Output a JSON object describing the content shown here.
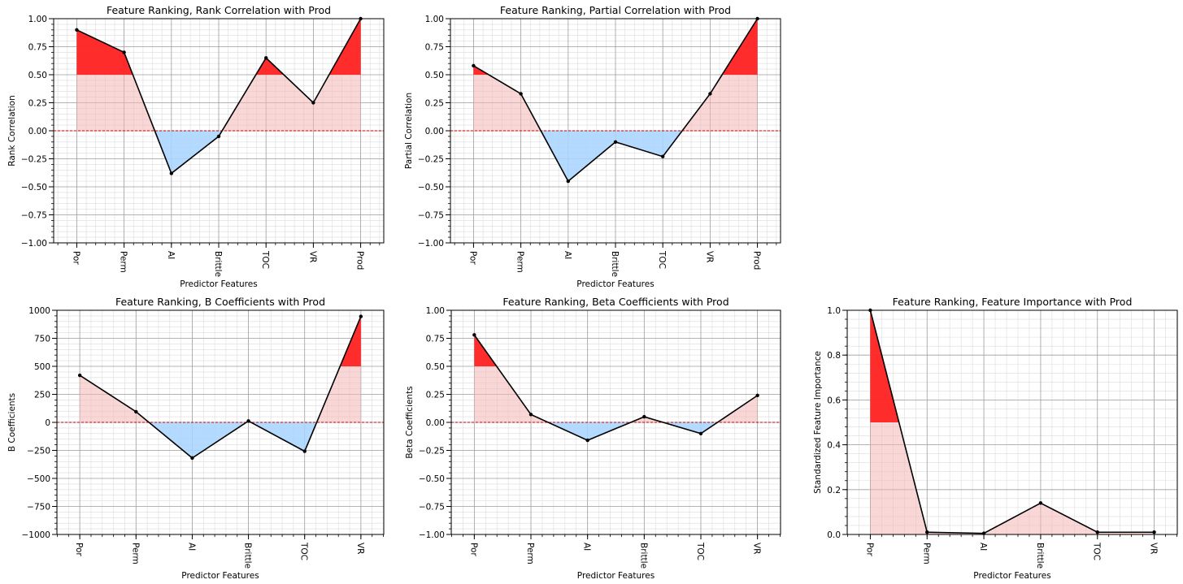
{
  "chart_data": [
    {
      "type": "line",
      "title": "Feature Ranking, Rank Correlation with Prod",
      "xlabel": "Predictor Features",
      "ylabel": "Rank Correlation",
      "categories": [
        "Por",
        "Perm",
        "AI",
        "Brittle",
        "TOC",
        "VR",
        "Prod"
      ],
      "values": [
        0.9,
        0.7,
        -0.38,
        -0.05,
        0.65,
        0.25,
        1.0
      ],
      "ylim": [
        -1.0,
        1.0
      ],
      "yticks": [
        "−1.00",
        "−0.75",
        "−0.50",
        "−0.25",
        "0.00",
        "0.25",
        "0.50",
        "0.75",
        "1.00"
      ],
      "fill": "positive-light-red, above-0.5-red, negative-light-blue",
      "grid": true
    },
    {
      "type": "line",
      "title": "Feature Ranking, Partial Correlation with Prod",
      "xlabel": "Predictor Features",
      "ylabel": "Partial Correlation",
      "categories": [
        "Por",
        "Perm",
        "AI",
        "Brittle",
        "TOC",
        "VR",
        "Prod"
      ],
      "values": [
        0.58,
        0.33,
        -0.45,
        -0.1,
        -0.23,
        0.33,
        1.0
      ],
      "ylim": [
        -1.0,
        1.0
      ],
      "yticks": [
        "−1.00",
        "−0.75",
        "−0.50",
        "−0.25",
        "0.00",
        "0.25",
        "0.50",
        "0.75",
        "1.00"
      ],
      "fill": "positive-light-red, above-0.5-red, negative-light-blue",
      "grid": true
    },
    {
      "type": "line",
      "title": "Feature Ranking, B Coefficients with Prod",
      "xlabel": "Predictor Features",
      "ylabel": "B Coefficients",
      "categories": [
        "Por",
        "Perm",
        "AI",
        "Brittle",
        "TOC",
        "VR"
      ],
      "values": [
        420,
        95,
        -318,
        12,
        -258,
        945
      ],
      "ylim": [
        -1000,
        1000
      ],
      "yticks": [
        "−1000",
        "−750",
        "−500",
        "−250",
        "0",
        "250",
        "500",
        "750",
        "1000"
      ],
      "fill": "positive-light-red, above-500-red, negative-light-blue",
      "grid": true
    },
    {
      "type": "line",
      "title": "Feature Ranking, Beta Coefficients with Prod",
      "xlabel": "Predictor Features",
      "ylabel": "Beta Coefficients",
      "categories": [
        "Por",
        "Perm",
        "AI",
        "Brittle",
        "TOC",
        "VR"
      ],
      "values": [
        0.78,
        0.07,
        -0.16,
        0.05,
        -0.1,
        0.24
      ],
      "ylim": [
        -1.0,
        1.0
      ],
      "yticks": [
        "−1.00",
        "−0.75",
        "−0.50",
        "−0.25",
        "0.00",
        "0.25",
        "0.50",
        "0.75",
        "1.00"
      ],
      "fill": "positive-light-red, above-0.5-red, negative-light-blue",
      "grid": true
    },
    {
      "type": "line",
      "title": "Feature Ranking, Feature Importance with Prod",
      "xlabel": "Predictor Features",
      "ylabel": "Standardized Feature Importance",
      "categories": [
        "Por",
        "Perm",
        "AI",
        "Brittle",
        "TOC",
        "VR"
      ],
      "values": [
        1.0,
        0.01,
        0.005,
        0.14,
        0.01,
        0.01
      ],
      "ylim": [
        0.0,
        1.0
      ],
      "yticks": [
        "0.0",
        "0.2",
        "0.4",
        "0.6",
        "0.8",
        "1.0"
      ],
      "fill": "positive-light-red, above-0.5-red",
      "grid": true
    }
  ],
  "colors": {
    "line": "#000000",
    "fill_positive": "#f4b6b6",
    "fill_strong": "#ff1a1a",
    "fill_negative": "#a8d4ff",
    "zero_line": "#cc0000",
    "grid_major": "#a0a0a0",
    "grid_minor": "#dcdcdc"
  }
}
